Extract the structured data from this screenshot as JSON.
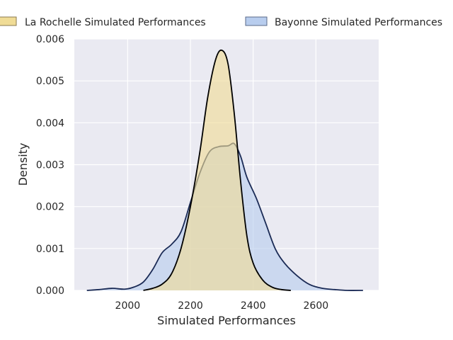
{
  "chart_data": {
    "type": "area",
    "title": "",
    "xlabel": "Simulated Performances",
    "ylabel": "Density",
    "xlim": [
      1830,
      2800
    ],
    "ylim": [
      0,
      0.006
    ],
    "xticks": [
      2000,
      2200,
      2400,
      2600
    ],
    "yticks": [
      0,
      0.001,
      0.002,
      0.003,
      0.004,
      0.005,
      0.006
    ],
    "xtick_labels": [
      "2000",
      "2200",
      "2400",
      "2600"
    ],
    "ytick_labels": [
      "0.000",
      "0.001",
      "0.002",
      "0.003",
      "0.004",
      "0.005",
      "0.006"
    ],
    "grid": true,
    "legend_position": "top",
    "series": [
      {
        "name": "La Rochelle Simulated Performances",
        "fill": "#f0dc96",
        "line": "#000000",
        "x": [
          2050,
          2080,
          2110,
          2140,
          2170,
          2200,
          2230,
          2255,
          2280,
          2300,
          2320,
          2340,
          2360,
          2380,
          2400,
          2430,
          2460,
          2490,
          2520
        ],
        "y": [
          0.0,
          5e-05,
          0.00015,
          0.0004,
          0.001,
          0.002,
          0.0033,
          0.0046,
          0.0055,
          0.00573,
          0.0054,
          0.0042,
          0.0026,
          0.0013,
          0.00065,
          0.00025,
          8e-05,
          2e-05,
          0.0
        ]
      },
      {
        "name": "Bayonne Simulated Performances",
        "fill": "#b8cdee",
        "line": "#1a2a55",
        "x": [
          1870,
          1910,
          1950,
          1990,
          2020,
          2050,
          2080,
          2110,
          2140,
          2170,
          2200,
          2230,
          2260,
          2290,
          2320,
          2340,
          2360,
          2380,
          2410,
          2440,
          2470,
          2500,
          2540,
          2580,
          2620,
          2660,
          2700,
          2750
        ],
        "y": [
          0.0,
          2e-05,
          5e-05,
          3e-05,
          8e-05,
          0.0002,
          0.0005,
          0.0009,
          0.0011,
          0.0014,
          0.0021,
          0.0028,
          0.0033,
          0.00343,
          0.00345,
          0.0035,
          0.0032,
          0.0027,
          0.0022,
          0.0016,
          0.001,
          0.00065,
          0.00035,
          0.00014,
          5e-05,
          2e-05,
          0.0,
          0.0
        ]
      }
    ]
  }
}
